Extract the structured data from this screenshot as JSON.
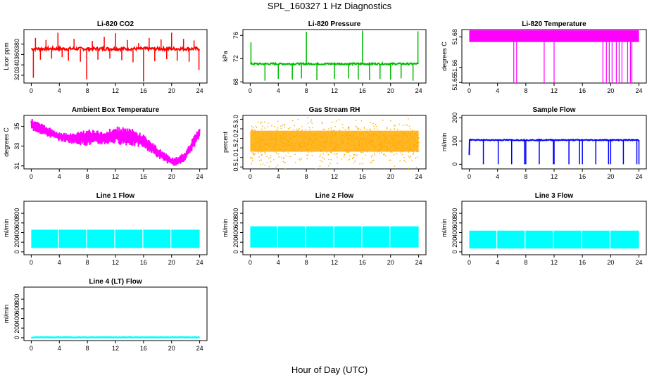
{
  "figure": {
    "title": "SPL_160327  1 Hz Diagnostics",
    "xlabel": "Hour of Day (UTC)"
  },
  "chart_data": [
    {
      "id": "p1",
      "type": "line",
      "title": "Li-820 CO2",
      "ylabel": "Licor ppm",
      "color": "#ff0000",
      "xlim": [
        0,
        24
      ],
      "ylim": [
        305,
        408
      ],
      "xticks": [
        0,
        4,
        8,
        12,
        16,
        20,
        24
      ],
      "yticks": [
        320,
        340,
        360,
        380
      ],
      "yticklabels": [
        "320",
        "340",
        "360",
        "380"
      ],
      "series": [
        {
          "name": "CO2",
          "baseline": 371,
          "spread": 3,
          "spikes": [
            {
              "x": 0.3,
              "y": 315
            },
            {
              "x": 0.6,
              "y": 392
            },
            {
              "x": 1.3,
              "y": 350
            },
            {
              "x": 2.1,
              "y": 388
            },
            {
              "x": 2.9,
              "y": 352
            },
            {
              "x": 3.8,
              "y": 402
            },
            {
              "x": 4.4,
              "y": 355
            },
            {
              "x": 5.3,
              "y": 348
            },
            {
              "x": 6.1,
              "y": 390
            },
            {
              "x": 7.0,
              "y": 346
            },
            {
              "x": 7.9,
              "y": 312
            },
            {
              "x": 8.7,
              "y": 386
            },
            {
              "x": 9.5,
              "y": 350
            },
            {
              "x": 10.4,
              "y": 394
            },
            {
              "x": 11.2,
              "y": 352
            },
            {
              "x": 12.0,
              "y": 401
            },
            {
              "x": 12.9,
              "y": 349
            },
            {
              "x": 13.7,
              "y": 388
            },
            {
              "x": 14.5,
              "y": 345
            },
            {
              "x": 15.3,
              "y": 382
            },
            {
              "x": 16.0,
              "y": 308
            },
            {
              "x": 16.8,
              "y": 392
            },
            {
              "x": 17.6,
              "y": 347
            },
            {
              "x": 18.5,
              "y": 389
            },
            {
              "x": 19.3,
              "y": 351
            },
            {
              "x": 20.0,
              "y": 402
            },
            {
              "x": 20.8,
              "y": 348
            },
            {
              "x": 21.7,
              "y": 390
            },
            {
              "x": 22.5,
              "y": 346
            },
            {
              "x": 23.2,
              "y": 387
            },
            {
              "x": 23.9,
              "y": 330
            }
          ]
        }
      ]
    },
    {
      "id": "p2",
      "type": "line",
      "title": "Li-820 Pressure",
      "ylabel": "kPa",
      "color": "#00bb00",
      "xlim": [
        0,
        24
      ],
      "ylim": [
        67.8,
        77
      ],
      "xticks": [
        0,
        4,
        8,
        12,
        16,
        20,
        24
      ],
      "yticks": [
        68,
        72,
        76
      ],
      "yticklabels": [
        "68",
        "72",
        "76"
      ],
      "series": [
        {
          "name": "Pressure",
          "baseline": 71.1,
          "spread": 0.15,
          "spikes": [
            {
              "x": 0.1,
              "y": 74.8
            },
            {
              "x": 2.1,
              "y": 68.2
            },
            {
              "x": 4.0,
              "y": 68.5
            },
            {
              "x": 6.0,
              "y": 68.4
            },
            {
              "x": 7.3,
              "y": 68.6
            },
            {
              "x": 8.0,
              "y": 76.6
            },
            {
              "x": 9.5,
              "y": 68.3
            },
            {
              "x": 12.0,
              "y": 68.5
            },
            {
              "x": 14.0,
              "y": 68.6
            },
            {
              "x": 15.4,
              "y": 68.4
            },
            {
              "x": 16.0,
              "y": 76.8
            },
            {
              "x": 17.0,
              "y": 68.3
            },
            {
              "x": 18.5,
              "y": 68.5
            },
            {
              "x": 20.0,
              "y": 68.4
            },
            {
              "x": 21.5,
              "y": 68.6
            },
            {
              "x": 23.2,
              "y": 68.2
            },
            {
              "x": 23.9,
              "y": 76.7
            }
          ]
        }
      ]
    },
    {
      "id": "p3",
      "type": "line",
      "title": "Li-820 Temperature",
      "ylabel": "degrees C",
      "color": "#ff00ff",
      "xlim": [
        0,
        24
      ],
      "ylim": [
        51.6497,
        51.6848
      ],
      "xticks": [
        0,
        4,
        8,
        12,
        16,
        20,
        24
      ],
      "yticks": [
        51.65,
        51.66,
        51.68
      ],
      "yticklabels": [
        "51.65",
        "51.66",
        "51.68"
      ],
      "series": [
        {
          "name": "Temperature",
          "band_low": 51.6766,
          "band_high": 51.6843,
          "dips": [
            6.3,
            6.7,
            10.6,
            12.0,
            18.9,
            19.4,
            19.8,
            20.2,
            20.8,
            21.2,
            21.6,
            22.4,
            22.8,
            23.0
          ]
        }
      ]
    },
    {
      "id": "p4",
      "type": "area",
      "title": "Ambient Box Temperature",
      "ylabel": "degrees C",
      "color": "#ff00ff",
      "xlim": [
        0,
        24
      ],
      "ylim": [
        30.7,
        36.1
      ],
      "xticks": [
        0,
        4,
        8,
        12,
        16,
        20,
        24
      ],
      "yticks": [
        31,
        33,
        35
      ],
      "yticklabels": [
        "31",
        "33",
        "35"
      ],
      "series": [
        {
          "name": "Box Temp",
          "x": [
            0,
            2,
            4,
            6,
            8,
            10,
            12,
            14,
            16,
            18,
            20,
            21,
            22,
            23,
            24
          ],
          "low": [
            34.6,
            34.0,
            33.5,
            33.2,
            33.0,
            33.1,
            33.2,
            33.0,
            32.8,
            31.8,
            31.0,
            31.0,
            31.6,
            32.6,
            33.8
          ],
          "high": [
            35.8,
            35.1,
            34.4,
            34.3,
            34.8,
            34.5,
            35.0,
            34.9,
            34.2,
            32.9,
            31.9,
            31.9,
            32.6,
            33.8,
            35.1
          ]
        }
      ]
    },
    {
      "id": "p5",
      "type": "scatter",
      "title": "Gas Stream RH",
      "ylabel": "percent",
      "color": "#ffaa00",
      "xlim": [
        0,
        24
      ],
      "ylim": [
        0.4,
        3.2
      ],
      "xticks": [
        0,
        4,
        8,
        12,
        16,
        20,
        24
      ],
      "yticks": [
        0.5,
        1.0,
        1.5,
        2.0,
        2.5,
        3.0
      ],
      "yticklabels": [
        "0.5",
        "1.0",
        "1.5",
        "2.0",
        "2.5",
        "3.0"
      ],
      "series": [
        {
          "name": "RH",
          "center": 1.85,
          "low": 0.6,
          "high": 2.95
        }
      ]
    },
    {
      "id": "p6",
      "type": "line",
      "title": "Sample Flow",
      "ylabel": "ml/min",
      "color": "#0000ff",
      "xlim": [
        0,
        24
      ],
      "ylim": [
        -20,
        210
      ],
      "xticks": [
        0,
        4,
        8,
        12,
        16,
        20,
        24
      ],
      "yticks": [
        0,
        100,
        200
      ],
      "yticklabels": [
        "0",
        "100",
        "200"
      ],
      "series": [
        {
          "name": "Sample Flow",
          "baseline": 104,
          "dips": [
            2.0,
            4.1,
            6.0,
            7.8,
            8.0,
            9.9,
            11.9,
            12.0,
            14.1,
            15.6,
            16.0,
            17.9,
            19.7,
            20.0,
            21.8,
            23.7,
            24.0
          ]
        }
      ]
    },
    {
      "id": "p7",
      "type": "area",
      "title": "Line 1 Flow",
      "ylabel": "ml/min",
      "color": "#00ffff",
      "xlim": [
        0,
        24
      ],
      "ylim": [
        -60,
        1050
      ],
      "xticks": [
        0,
        4,
        8,
        12,
        16,
        20,
        24
      ],
      "yticks": [
        0,
        200,
        400,
        600,
        800
      ],
      "yticklabels": [
        "0",
        "200",
        "400",
        "600",
        "800"
      ],
      "series": [
        {
          "name": "Line 1",
          "low": 80,
          "high": 460,
          "xstart": 0,
          "xend": 24,
          "gaps": [
            3.9,
            7.9,
            11.9,
            15.9,
            19.9
          ]
        }
      ]
    },
    {
      "id": "p8",
      "type": "area",
      "title": "Line 2 Flow",
      "ylabel": "ml/min",
      "color": "#00ffff",
      "xlim": [
        0,
        24
      ],
      "ylim": [
        -60,
        1050
      ],
      "xticks": [
        0,
        4,
        8,
        12,
        16,
        20,
        24
      ],
      "yticks": [
        0,
        200,
        400,
        600,
        800
      ],
      "yticklabels": [
        "0",
        "200",
        "400",
        "600",
        "800"
      ],
      "series": [
        {
          "name": "Line 2",
          "low": 90,
          "high": 530,
          "xstart": 0,
          "xend": 24,
          "gaps": [
            3.9,
            7.9,
            11.9,
            15.9,
            19.9
          ]
        }
      ]
    },
    {
      "id": "p9",
      "type": "area",
      "title": "Line 3 Flow",
      "ylabel": "ml/min",
      "color": "#00ffff",
      "xlim": [
        0,
        24
      ],
      "ylim": [
        -60,
        1050
      ],
      "xticks": [
        0,
        4,
        8,
        12,
        16,
        20,
        24
      ],
      "yticks": [
        0,
        200,
        400,
        600,
        800
      ],
      "yticklabels": [
        "0",
        "200",
        "400",
        "600",
        "800"
      ],
      "series": [
        {
          "name": "Line 3",
          "low": 70,
          "high": 440,
          "xstart": 0,
          "xend": 24,
          "gaps": [
            3.9,
            7.9,
            11.9,
            15.9,
            19.9
          ]
        }
      ]
    },
    {
      "id": "p10",
      "type": "line",
      "title": "Line 4 (LT) Flow",
      "ylabel": "ml/min",
      "color": "#00ffff",
      "xlim": [
        0,
        24
      ],
      "ylim": [
        -60,
        1050
      ],
      "xticks": [
        0,
        4,
        8,
        12,
        16,
        20,
        24
      ],
      "yticks": [
        0,
        200,
        400,
        600,
        800
      ],
      "yticklabels": [
        "0",
        "200",
        "400",
        "600",
        "800"
      ],
      "series": [
        {
          "name": "Line 4",
          "baseline": 8,
          "spread": 6
        }
      ]
    }
  ]
}
